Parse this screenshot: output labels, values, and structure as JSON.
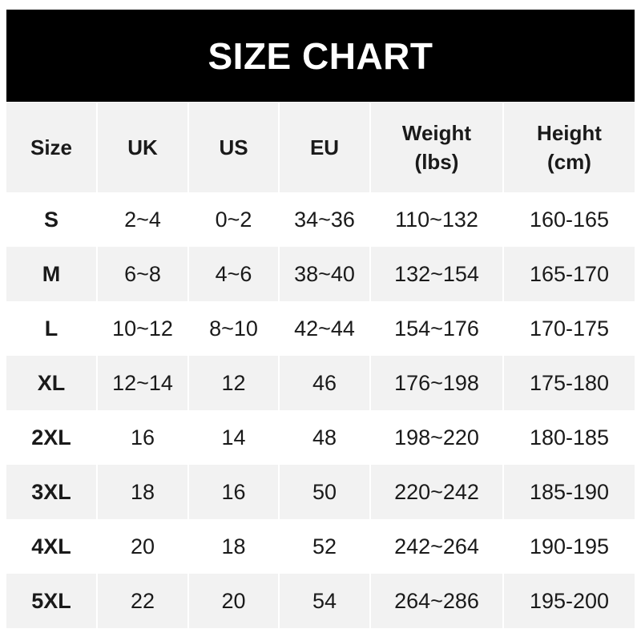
{
  "title": "SIZE CHART",
  "headers": [
    [
      "Size"
    ],
    [
      "UK"
    ],
    [
      "US"
    ],
    [
      "EU"
    ],
    [
      "Weight",
      "(lbs)"
    ],
    [
      "Height",
      "(cm)"
    ]
  ],
  "rows": [
    [
      "S",
      "2~4",
      "0~2",
      "34~36",
      "110~132",
      "160-165"
    ],
    [
      "M",
      "6~8",
      "4~6",
      "38~40",
      "132~154",
      "165-170"
    ],
    [
      "L",
      "10~12",
      "8~10",
      "42~44",
      "154~176",
      "170-175"
    ],
    [
      "XL",
      "12~14",
      "12",
      "46",
      "176~198",
      "175-180"
    ],
    [
      "2XL",
      "16",
      "14",
      "48",
      "198~220",
      "180-185"
    ],
    [
      "3XL",
      "18",
      "16",
      "50",
      "220~242",
      "185-190"
    ],
    [
      "4XL",
      "20",
      "18",
      "52",
      "242~264",
      "190-195"
    ],
    [
      "5XL",
      "22",
      "20",
      "54",
      "264~286",
      "195-200"
    ]
  ],
  "colors": {
    "header_bg": "#000000",
    "row_alt": "#f2f2f2"
  }
}
